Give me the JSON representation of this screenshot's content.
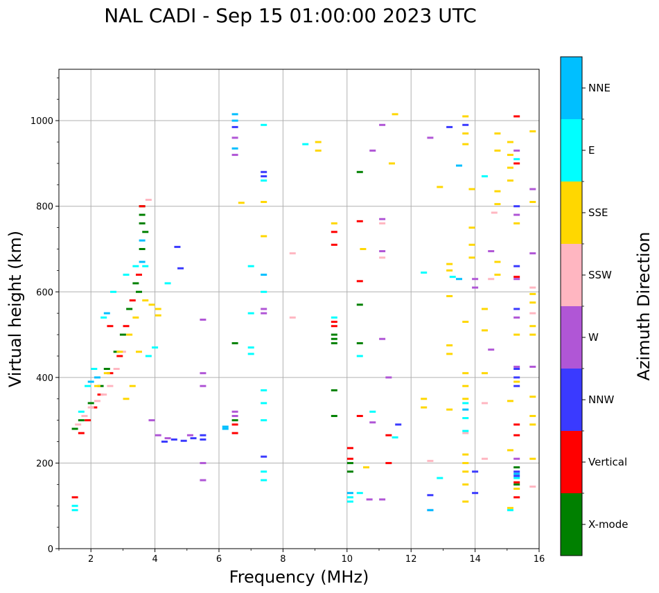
{
  "chart_data": {
    "type": "scatter",
    "title": "NAL CADI - Sep 15 01:00:00 2023 UTC",
    "xlabel": "Frequency (MHz)",
    "ylabel": "Virtual height (km)",
    "xlim": [
      1,
      16
    ],
    "ylim": [
      0,
      1120
    ],
    "xticks": [
      2,
      4,
      6,
      8,
      10,
      12,
      14,
      16
    ],
    "yticks": [
      0,
      200,
      400,
      600,
      800,
      1000
    ],
    "grid": true,
    "colorbar": {
      "label": "Azimuth Direction",
      "categories": [
        {
          "name": "X-mode",
          "color": "#008000"
        },
        {
          "name": "Vertical",
          "color": "#ff0000"
        },
        {
          "name": "NNW",
          "color": "#3a3aff"
        },
        {
          "name": "W",
          "color": "#b056d6"
        },
        {
          "name": "SSW",
          "color": "#ffb6c1"
        },
        {
          "name": "SSE",
          "color": "#ffd700"
        },
        {
          "name": "E",
          "color": "#00ffff"
        },
        {
          "name": "NNE",
          "color": "#00bfff"
        }
      ]
    },
    "series": [
      {
        "name": "X-mode",
        "points": [
          [
            3.6,
            800
          ],
          [
            3.6,
            780
          ],
          [
            3.6,
            760
          ],
          [
            3.7,
            740
          ],
          [
            3.6,
            700
          ],
          [
            3.4,
            620
          ],
          [
            3.5,
            600
          ],
          [
            3.2,
            560
          ],
          [
            3.0,
            500
          ],
          [
            2.8,
            460
          ],
          [
            2.5,
            420
          ],
          [
            2.3,
            380
          ],
          [
            2.0,
            340
          ],
          [
            1.7,
            300
          ],
          [
            1.5,
            280
          ],
          [
            9.6,
            500
          ],
          [
            9.6,
            490
          ],
          [
            9.6,
            480
          ],
          [
            9.6,
            370
          ],
          [
            9.6,
            310
          ],
          [
            10.4,
            880
          ],
          [
            10.4,
            570
          ],
          [
            10.4,
            480
          ],
          [
            10.1,
            200
          ],
          [
            10.1,
            180
          ],
          [
            6.5,
            480
          ],
          [
            6.5,
            300
          ],
          [
            15.3,
            150
          ],
          [
            15.3,
            190
          ]
        ]
      },
      {
        "name": "Vertical",
        "points": [
          [
            1.5,
            120
          ],
          [
            1.7,
            270
          ],
          [
            1.9,
            300
          ],
          [
            2.1,
            330
          ],
          [
            2.3,
            360
          ],
          [
            2.6,
            410
          ],
          [
            2.9,
            450
          ],
          [
            3.1,
            520
          ],
          [
            3.3,
            580
          ],
          [
            3.5,
            640
          ],
          [
            3.6,
            800
          ],
          [
            2.6,
            520
          ],
          [
            9.6,
            530
          ],
          [
            9.6,
            520
          ],
          [
            9.6,
            710
          ],
          [
            9.6,
            740
          ],
          [
            10.4,
            765
          ],
          [
            10.4,
            625
          ],
          [
            10.4,
            310
          ],
          [
            10.1,
            235
          ],
          [
            10.1,
            210
          ],
          [
            11.3,
            265
          ],
          [
            11.3,
            200
          ],
          [
            15.3,
            1010
          ],
          [
            15.3,
            900
          ],
          [
            15.3,
            635
          ],
          [
            15.3,
            290
          ],
          [
            15.3,
            265
          ],
          [
            15.3,
            155
          ],
          [
            15.3,
            120
          ],
          [
            6.5,
            290
          ],
          [
            6.5,
            270
          ]
        ]
      },
      {
        "name": "NNW",
        "points": [
          [
            4.3,
            250
          ],
          [
            4.6,
            255
          ],
          [
            4.9,
            252
          ],
          [
            5.2,
            258
          ],
          [
            5.5,
            255
          ],
          [
            5.5,
            265
          ],
          [
            4.7,
            705
          ],
          [
            4.8,
            655
          ],
          [
            6.5,
            985
          ],
          [
            7.4,
            880
          ],
          [
            7.4,
            870
          ],
          [
            7.4,
            215
          ],
          [
            13.2,
            985
          ],
          [
            13.7,
            990
          ],
          [
            14.0,
            180
          ],
          [
            14.0,
            130
          ],
          [
            12.6,
            90
          ],
          [
            15.3,
            800
          ],
          [
            15.3,
            660
          ],
          [
            15.3,
            560
          ],
          [
            15.3,
            420
          ],
          [
            15.3,
            400
          ],
          [
            15.3,
            380
          ],
          [
            15.3,
            180
          ],
          [
            15.3,
            170
          ],
          [
            11.6,
            290
          ],
          [
            12.6,
            125
          ]
        ]
      },
      {
        "name": "W",
        "points": [
          [
            3.9,
            300
          ],
          [
            4.1,
            265
          ],
          [
            4.4,
            258
          ],
          [
            5.1,
            265
          ],
          [
            5.5,
            535
          ],
          [
            5.5,
            410
          ],
          [
            5.5,
            380
          ],
          [
            5.5,
            200
          ],
          [
            5.5,
            160
          ],
          [
            6.5,
            920
          ],
          [
            6.5,
            960
          ],
          [
            6.5,
            310
          ],
          [
            6.5,
            320
          ],
          [
            7.4,
            550
          ],
          [
            7.4,
            560
          ],
          [
            10.8,
            930
          ],
          [
            11.1,
            990
          ],
          [
            11.1,
            490
          ],
          [
            11.1,
            770
          ],
          [
            11.1,
            695
          ],
          [
            10.8,
            295
          ],
          [
            12.6,
            960
          ],
          [
            15.3,
            930
          ],
          [
            15.3,
            780
          ],
          [
            15.3,
            630
          ],
          [
            15.3,
            540
          ],
          [
            15.3,
            425
          ],
          [
            15.3,
            210
          ],
          [
            15.8,
            840
          ],
          [
            15.8,
            690
          ],
          [
            15.8,
            425
          ],
          [
            14.5,
            695
          ],
          [
            14.5,
            465
          ],
          [
            14.0,
            630
          ],
          [
            14.0,
            610
          ],
          [
            11.3,
            400
          ],
          [
            10.7,
            115
          ],
          [
            11.1,
            115
          ]
        ]
      },
      {
        "name": "SSW",
        "points": [
          [
            1.6,
            290
          ],
          [
            1.8,
            310
          ],
          [
            2.0,
            330
          ],
          [
            2.2,
            345
          ],
          [
            2.4,
            360
          ],
          [
            2.6,
            380
          ],
          [
            2.8,
            420
          ],
          [
            3.0,
            460
          ],
          [
            3.8,
            815
          ],
          [
            8.3,
            690
          ],
          [
            8.3,
            540
          ],
          [
            11.1,
            680
          ],
          [
            11.1,
            760
          ],
          [
            12.6,
            205
          ],
          [
            14.3,
            210
          ],
          [
            14.3,
            340
          ],
          [
            14.6,
            785
          ],
          [
            14.5,
            630
          ],
          [
            15.8,
            610
          ],
          [
            15.8,
            550
          ],
          [
            15.8,
            145
          ],
          [
            13.7,
            270
          ]
        ]
      },
      {
        "name": "SSE",
        "points": [
          [
            2.2,
            380
          ],
          [
            2.5,
            410
          ],
          [
            2.9,
            460
          ],
          [
            3.2,
            500
          ],
          [
            3.4,
            540
          ],
          [
            3.7,
            580
          ],
          [
            3.9,
            570
          ],
          [
            4.1,
            560
          ],
          [
            4.1,
            545
          ],
          [
            3.5,
            460
          ],
          [
            3.1,
            350
          ],
          [
            3.3,
            380
          ],
          [
            6.7,
            808
          ],
          [
            7.4,
            810
          ],
          [
            7.4,
            730
          ],
          [
            9.1,
            930
          ],
          [
            9.1,
            950
          ],
          [
            9.6,
            760
          ],
          [
            10.5,
            700
          ],
          [
            10.6,
            190
          ],
          [
            11.4,
            900
          ],
          [
            11.5,
            1015
          ],
          [
            12.4,
            350
          ],
          [
            12.4,
            330
          ],
          [
            12.9,
            845
          ],
          [
            13.2,
            665
          ],
          [
            13.2,
            650
          ],
          [
            13.2,
            590
          ],
          [
            13.2,
            475
          ],
          [
            13.2,
            455
          ],
          [
            13.2,
            325
          ],
          [
            13.7,
            1010
          ],
          [
            13.7,
            970
          ],
          [
            13.7,
            945
          ],
          [
            13.7,
            530
          ],
          [
            13.7,
            410
          ],
          [
            13.7,
            380
          ],
          [
            13.7,
            350
          ],
          [
            13.7,
            220
          ],
          [
            13.7,
            200
          ],
          [
            13.7,
            180
          ],
          [
            13.7,
            150
          ],
          [
            13.7,
            110
          ],
          [
            13.9,
            840
          ],
          [
            13.9,
            750
          ],
          [
            13.9,
            710
          ],
          [
            13.9,
            680
          ],
          [
            14.3,
            560
          ],
          [
            14.3,
            510
          ],
          [
            14.3,
            410
          ],
          [
            14.7,
            970
          ],
          [
            14.7,
            930
          ],
          [
            14.7,
            835
          ],
          [
            14.7,
            805
          ],
          [
            14.7,
            670
          ],
          [
            14.7,
            640
          ],
          [
            15.1,
            950
          ],
          [
            15.1,
            920
          ],
          [
            15.1,
            890
          ],
          [
            15.1,
            860
          ],
          [
            15.1,
            230
          ],
          [
            15.1,
            345
          ],
          [
            15.1,
            95
          ],
          [
            15.8,
            975
          ],
          [
            15.8,
            810
          ],
          [
            15.8,
            595
          ],
          [
            15.8,
            575
          ],
          [
            15.8,
            520
          ],
          [
            15.8,
            500
          ],
          [
            15.8,
            355
          ],
          [
            15.8,
            310
          ],
          [
            15.8,
            290
          ],
          [
            15.8,
            210
          ],
          [
            15.3,
            760
          ],
          [
            15.3,
            500
          ],
          [
            15.3,
            390
          ],
          [
            15.3,
            140
          ]
        ]
      },
      {
        "name": "E",
        "points": [
          [
            1.5,
            90
          ],
          [
            1.5,
            100
          ],
          [
            1.7,
            320
          ],
          [
            1.9,
            380
          ],
          [
            2.1,
            420
          ],
          [
            2.4,
            540
          ],
          [
            2.7,
            600
          ],
          [
            3.1,
            640
          ],
          [
            3.4,
            660
          ],
          [
            3.7,
            660
          ],
          [
            4.0,
            470
          ],
          [
            3.8,
            450
          ],
          [
            4.4,
            620
          ],
          [
            7.0,
            660
          ],
          [
            7.0,
            550
          ],
          [
            7.0,
            470
          ],
          [
            7.0,
            455
          ],
          [
            7.4,
            990
          ],
          [
            7.4,
            860
          ],
          [
            7.4,
            600
          ],
          [
            7.4,
            370
          ],
          [
            7.4,
            340
          ],
          [
            7.4,
            300
          ],
          [
            7.4,
            180
          ],
          [
            7.4,
            160
          ],
          [
            8.7,
            945
          ],
          [
            9.6,
            540
          ],
          [
            10.4,
            450
          ],
          [
            10.4,
            130
          ],
          [
            10.1,
            120
          ],
          [
            10.1,
            110
          ],
          [
            10.8,
            320
          ],
          [
            11.5,
            260
          ],
          [
            12.4,
            645
          ],
          [
            12.9,
            165
          ],
          [
            13.3,
            635
          ],
          [
            13.7,
            340
          ],
          [
            13.7,
            305
          ],
          [
            13.7,
            275
          ],
          [
            14.3,
            870
          ],
          [
            15.3,
            165
          ],
          [
            15.3,
            910
          ],
          [
            15.1,
            90
          ]
        ]
      },
      {
        "name": "NNE",
        "points": [
          [
            2.0,
            390
          ],
          [
            2.2,
            400
          ],
          [
            2.5,
            550
          ],
          [
            3.6,
            670
          ],
          [
            3.6,
            720
          ],
          [
            6.5,
            1015
          ],
          [
            6.5,
            1000
          ],
          [
            6.5,
            935
          ],
          [
            6.2,
            285
          ],
          [
            6.2,
            280
          ],
          [
            7.4,
            640
          ],
          [
            10.1,
            130
          ],
          [
            12.6,
            90
          ],
          [
            13.5,
            895
          ],
          [
            13.5,
            630
          ],
          [
            13.7,
            325
          ],
          [
            15.3,
            175
          ]
        ]
      }
    ]
  }
}
